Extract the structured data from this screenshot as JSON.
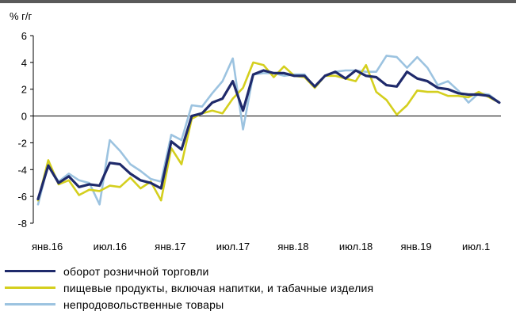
{
  "chart_data": {
    "type": "line",
    "title": "% г/г",
    "ylim": [
      -8,
      6
    ],
    "yticks": [
      -8,
      -6,
      -4,
      -2,
      0,
      2,
      4,
      6
    ],
    "ytick_labels": [
      "-8",
      "-6",
      "-4",
      "-2",
      "0",
      "2",
      "4",
      "6"
    ],
    "xtick_labels": [
      "янв.16",
      "июл.16",
      "янв.17",
      "июл.17",
      "янв.18",
      "июл.18",
      "янв.19",
      "июл.1"
    ],
    "xtick_months": [
      0,
      6,
      12,
      18,
      24,
      30,
      36,
      42
    ],
    "x_start": "2016-01",
    "grid": false,
    "legend_position": "bottom",
    "series": [
      {
        "name": "оборот розничной торговли",
        "color": "#1f2a6b",
        "values": [
          -6.2,
          -3.7,
          -5.0,
          -4.5,
          -5.3,
          -5.1,
          -5.2,
          -3.5,
          -3.6,
          -4.3,
          -4.8,
          -5.0,
          -5.4,
          -1.9,
          -2.5,
          0.0,
          0.2,
          1.0,
          1.3,
          2.6,
          0.4,
          3.1,
          3.4,
          3.2,
          3.2,
          3.0,
          3.0,
          2.2,
          3.0,
          3.3,
          2.8,
          3.4,
          3.0,
          2.9,
          2.3,
          2.2,
          3.3,
          2.8,
          2.6,
          2.1,
          2.0,
          1.7,
          1.6,
          1.6,
          1.5,
          1.0
        ]
      },
      {
        "name": "пищевые продукты, включая напитки, и табачные изделия",
        "color": "#d4cf1e",
        "values": [
          -6.3,
          -3.3,
          -5.1,
          -4.8,
          -5.9,
          -5.5,
          -5.6,
          -5.2,
          -5.3,
          -4.6,
          -5.4,
          -4.9,
          -6.3,
          -2.4,
          -3.6,
          -0.2,
          0.2,
          0.4,
          0.2,
          1.3,
          2.1,
          4.0,
          3.8,
          2.9,
          3.7,
          3.0,
          2.9,
          2.1,
          3.0,
          3.0,
          2.8,
          2.6,
          3.8,
          1.8,
          1.2,
          0.1,
          0.8,
          1.9,
          1.8,
          1.8,
          1.5,
          1.5,
          1.4,
          1.8,
          1.4,
          1.0
        ]
      },
      {
        "name": "непродовольственные товары",
        "color": "#9cc3e0",
        "values": [
          -6.6,
          -3.6,
          -4.9,
          -4.3,
          -4.8,
          -5.0,
          -6.6,
          -1.8,
          -2.6,
          -3.6,
          -4.1,
          -4.7,
          -4.9,
          -1.4,
          -1.8,
          0.8,
          0.7,
          1.7,
          2.6,
          4.3,
          -1.0,
          3.1,
          3.2,
          3.2,
          3.0,
          3.1,
          3.1,
          2.1,
          3.0,
          3.3,
          3.4,
          3.4,
          3.3,
          3.3,
          4.5,
          4.4,
          3.6,
          4.4,
          3.6,
          2.3,
          2.6,
          1.9,
          1.0,
          1.7,
          1.6,
          1.0
        ]
      }
    ]
  }
}
